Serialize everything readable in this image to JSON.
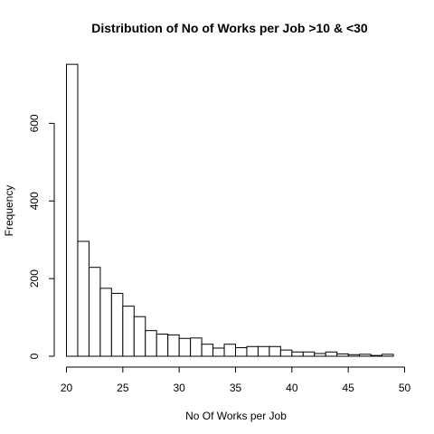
{
  "chart_data": {
    "type": "bar",
    "title": "Distribution of No of Works per Job >10 & <30",
    "xlabel": "No Of Works per Job",
    "ylabel": "Frequency",
    "xlim": [
      20,
      50
    ],
    "ylim": [
      0,
      750
    ],
    "x_ticks": [
      20,
      25,
      30,
      35,
      40,
      45,
      50
    ],
    "y_ticks": [
      0,
      200,
      400,
      600
    ],
    "grid": false,
    "bin_width": 1,
    "bins": [
      {
        "start": 20,
        "end": 21,
        "count": 752
      },
      {
        "start": 21,
        "end": 22,
        "count": 296
      },
      {
        "start": 22,
        "end": 23,
        "count": 229
      },
      {
        "start": 23,
        "end": 24,
        "count": 175
      },
      {
        "start": 24,
        "end": 25,
        "count": 162
      },
      {
        "start": 25,
        "end": 26,
        "count": 129
      },
      {
        "start": 26,
        "end": 27,
        "count": 102
      },
      {
        "start": 27,
        "end": 28,
        "count": 66
      },
      {
        "start": 28,
        "end": 29,
        "count": 57
      },
      {
        "start": 29,
        "end": 30,
        "count": 55
      },
      {
        "start": 30,
        "end": 31,
        "count": 46
      },
      {
        "start": 31,
        "end": 32,
        "count": 47
      },
      {
        "start": 32,
        "end": 33,
        "count": 31
      },
      {
        "start": 33,
        "end": 34,
        "count": 21
      },
      {
        "start": 34,
        "end": 35,
        "count": 31
      },
      {
        "start": 35,
        "end": 36,
        "count": 22
      },
      {
        "start": 36,
        "end": 37,
        "count": 25
      },
      {
        "start": 37,
        "end": 38,
        "count": 25
      },
      {
        "start": 38,
        "end": 39,
        "count": 25
      },
      {
        "start": 39,
        "end": 40,
        "count": 16
      },
      {
        "start": 40,
        "end": 41,
        "count": 11
      },
      {
        "start": 41,
        "end": 42,
        "count": 11
      },
      {
        "start": 42,
        "end": 43,
        "count": 7
      },
      {
        "start": 43,
        "end": 44,
        "count": 11
      },
      {
        "start": 44,
        "end": 45,
        "count": 6
      },
      {
        "start": 45,
        "end": 46,
        "count": 4
      },
      {
        "start": 46,
        "end": 47,
        "count": 5
      },
      {
        "start": 47,
        "end": 48,
        "count": 2
      },
      {
        "start": 48,
        "end": 49,
        "count": 5
      }
    ],
    "colors": {
      "bar_fill": "#ffffff",
      "bar_stroke": "#000000",
      "axis": "#000000"
    }
  }
}
